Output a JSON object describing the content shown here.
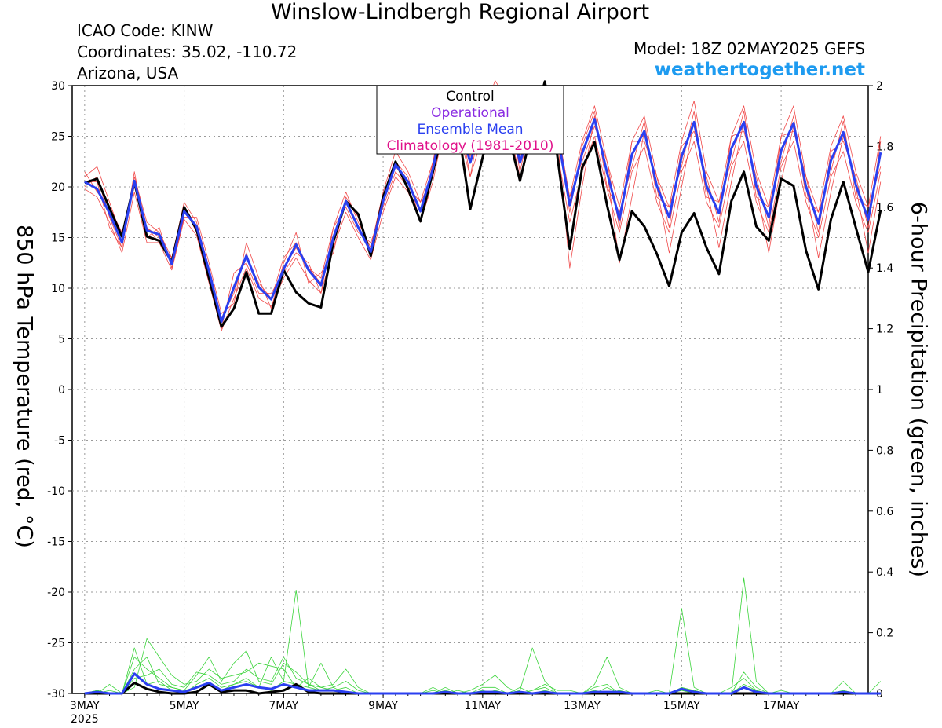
{
  "title": "Winslow-Lindbergh Regional Airport",
  "info": {
    "icao": "ICAO Code: KINW",
    "coordinates": "Coordinates: 35.02, -110.72",
    "location": "Arizona, USA",
    "model": "Model: 18Z 02MAY2025 GEFS",
    "site": "weathertogether.net"
  },
  "legend": {
    "entries": [
      {
        "label": "Control",
        "color": "#000000"
      },
      {
        "label": "Operational",
        "color": "#8a2be2"
      },
      {
        "label": "Ensemble Mean",
        "color": "#2a3ff0"
      },
      {
        "label": "Climatology (1981-2010)",
        "color": "#e0108a"
      }
    ]
  },
  "chart_data": {
    "type": "line",
    "grid": true,
    "y_left": {
      "label": "850 hPa Temperature (red, °C)",
      "range": [
        -30,
        30
      ],
      "ticks": [
        "30",
        "25",
        "20",
        "15",
        "10",
        "5",
        "0",
        "-5",
        "-10",
        "-15",
        "-20",
        "-25",
        "-30"
      ]
    },
    "y_right": {
      "label": "6-hour Precipitation (green, inches)",
      "range": [
        0,
        2
      ],
      "ticks": [
        "2",
        "1.8",
        "1.6",
        "1.4",
        "1.2",
        "1",
        "0.8",
        "0.6",
        "0.4",
        "0.2",
        "0"
      ]
    },
    "x_axis": {
      "start": "3MAY 18Z",
      "step_hours": 6,
      "range_steps": [
        -1,
        63
      ],
      "tick_labels": [
        {
          "label": "3MAY",
          "sub": "2025",
          "step": 0
        },
        {
          "label": "5MAY",
          "step": 8
        },
        {
          "label": "7MAY",
          "step": 16
        },
        {
          "label": "9MAY",
          "step": 24
        },
        {
          "label": "11MAY",
          "step": 32
        },
        {
          "label": "13MAY",
          "step": 40
        },
        {
          "label": "15MAY",
          "step": 48
        },
        {
          "label": "17MAY",
          "step": 56
        }
      ]
    },
    "temperature": {
      "control": {
        "color": "#000000",
        "values": [
          20.4,
          20.8,
          17.9,
          15.1,
          20.5,
          15.1,
          14.7,
          12.6,
          18.0,
          15.8,
          11.0,
          6.2,
          8.0,
          11.6,
          7.5,
          7.5,
          11.8,
          9.6,
          8.5,
          8.1,
          14.6,
          18.6,
          17.3,
          13.2,
          19.0,
          22.5,
          19.8,
          16.6,
          21.5,
          26.5,
          26.1,
          17.8,
          22.9,
          27.7,
          25.5,
          20.6,
          25.8,
          30.4,
          23.1,
          13.9,
          21.9,
          24.4,
          18.2,
          12.8,
          17.6,
          16.1,
          13.4,
          10.2,
          15.5,
          17.4,
          14.0,
          11.4,
          18.6,
          21.5,
          16.1,
          14.7,
          20.8,
          20.1,
          13.7,
          9.9,
          16.8,
          20.5,
          16.0,
          11.6,
          17.7
        ]
      },
      "mean": {
        "color": "#2a3ff0",
        "values": [
          20.5,
          19.8,
          17.4,
          14.5,
          20.6,
          15.7,
          15.3,
          12.4,
          17.6,
          16.1,
          11.7,
          6.7,
          10.1,
          13.2,
          10.1,
          8.9,
          11.9,
          14.3,
          11.8,
          10.3,
          15.0,
          18.6,
          16.0,
          13.6,
          18.6,
          22.2,
          20.5,
          17.6,
          21.8,
          27.7,
          27.0,
          22.4,
          26.5,
          29.8,
          27.9,
          22.4,
          26.4,
          27.7,
          25.3,
          18.2,
          23.3,
          26.7,
          21.4,
          16.8,
          23.2,
          25.5,
          20.1,
          17.0,
          23.0,
          26.4,
          20.1,
          17.4,
          23.8,
          26.4,
          20.1,
          17.0,
          23.6,
          26.3,
          20.0,
          16.4,
          22.6,
          25.4,
          20.2,
          16.8,
          23.4
        ]
      },
      "members": [
        {
          "color": "#f04848",
          "values": [
            21.0,
            22.0,
            18.5,
            15.0,
            21.0,
            16.5,
            15.5,
            13.0,
            18.5,
            16.5,
            12.0,
            7.0,
            9.5,
            13.5,
            10.0,
            9.0,
            13.0,
            14.5,
            12.0,
            11.0,
            16.0,
            19.5,
            16.5,
            14.0,
            19.5,
            23.5,
            21.5,
            18.5,
            22.5,
            28.5,
            28.0,
            23.0,
            27.0,
            30.5,
            28.5,
            23.0,
            27.0,
            28.5,
            26.0,
            19.0,
            24.5,
            28.0,
            22.5,
            18.0,
            24.5,
            27.0,
            21.0,
            18.0,
            24.5,
            28.5,
            21.5,
            18.5,
            25.0,
            28.0,
            21.5,
            18.0,
            25.0,
            28.0,
            21.0,
            17.5,
            24.0,
            27.0,
            21.5,
            18.0,
            25.0
          ]
        },
        {
          "color": "#f04848",
          "values": [
            19.8,
            19.0,
            16.5,
            13.5,
            19.5,
            14.5,
            14.5,
            11.8,
            16.8,
            15.2,
            10.5,
            5.8,
            9.0,
            12.0,
            9.0,
            8.2,
            11.0,
            13.0,
            10.8,
            9.5,
            14.0,
            17.5,
            15.0,
            12.8,
            17.5,
            21.0,
            19.5,
            16.5,
            20.5,
            26.5,
            25.8,
            21.0,
            25.0,
            28.5,
            26.5,
            21.0,
            25.0,
            26.0,
            23.5,
            16.5,
            21.5,
            25.0,
            19.8,
            15.5,
            21.5,
            24.0,
            18.5,
            15.5,
            21.5,
            24.5,
            18.5,
            16.0,
            22.0,
            24.5,
            18.5,
            15.5,
            22.0,
            24.5,
            18.5,
            15.0,
            21.0,
            23.5,
            18.5,
            15.5,
            21.5
          ]
        },
        {
          "color": "#f04848",
          "values": [
            20.0,
            21.0,
            17.0,
            14.0,
            21.5,
            15.0,
            16.0,
            12.0,
            17.0,
            17.0,
            12.5,
            7.5,
            8.5,
            14.5,
            11.0,
            8.0,
            12.5,
            15.5,
            10.5,
            11.5,
            13.5,
            19.0,
            17.0,
            13.0,
            19.0,
            22.5,
            21.0,
            16.5,
            22.5,
            27.0,
            28.0,
            21.0,
            27.5,
            29.5,
            29.0,
            21.5,
            27.0,
            27.0,
            26.0,
            17.5,
            24.0,
            27.5,
            20.0,
            17.5,
            22.0,
            26.5,
            19.0,
            18.0,
            22.0,
            27.5,
            19.0,
            18.5,
            22.5,
            27.5,
            19.0,
            18.0,
            22.5,
            27.0,
            19.0,
            17.5,
            21.5,
            26.5,
            19.0,
            18.0,
            22.0
          ]
        },
        {
          "color": "#f04848",
          "values": [
            21.5,
            19.5,
            18.0,
            15.5,
            20.0,
            16.0,
            14.5,
            13.0,
            18.0,
            15.5,
            11.0,
            6.0,
            11.5,
            12.5,
            9.5,
            9.5,
            11.5,
            13.5,
            12.5,
            9.5,
            16.0,
            18.0,
            15.5,
            14.5,
            18.0,
            21.5,
            20.0,
            18.5,
            21.0,
            28.0,
            26.0,
            23.5,
            25.5,
            30.0,
            27.0,
            23.5,
            25.5,
            28.5,
            24.5,
            19.0,
            22.5,
            26.0,
            22.5,
            16.0,
            24.5,
            24.5,
            21.0,
            16.0,
            24.0,
            25.5,
            21.0,
            16.5,
            25.0,
            25.5,
            21.0,
            16.0,
            25.0,
            25.5,
            21.0,
            15.5,
            23.5,
            24.5,
            21.0,
            16.0,
            24.5
          ]
        },
        {
          "color": "#f04848",
          "values": [
            20.5,
            20.5,
            16.0,
            14.0,
            20.5,
            16.0,
            15.0,
            12.5,
            17.5,
            16.0,
            11.5,
            7.0,
            10.0,
            13.0,
            10.5,
            9.0,
            12.0,
            14.0,
            12.0,
            10.5,
            15.0,
            18.5,
            16.0,
            13.5,
            18.5,
            22.0,
            20.5,
            17.5,
            22.0,
            27.5,
            27.0,
            22.5,
            26.5,
            29.5,
            28.0,
            22.5,
            26.5,
            27.5,
            25.0,
            12.0,
            20.0,
            27.0,
            21.5,
            12.5,
            19.0,
            25.5,
            20.0,
            13.5,
            20.0,
            26.5,
            20.0,
            14.0,
            20.5,
            26.5,
            20.0,
            13.5,
            20.5,
            26.0,
            20.0,
            13.0,
            19.5,
            25.0,
            20.0,
            13.5,
            20.5
          ]
        }
      ]
    },
    "precipitation": {
      "control": {
        "color": "#000000",
        "values": [
          0,
          0,
          0,
          0,
          0.035,
          0.015,
          0.005,
          0,
          0,
          0.005,
          0.03,
          0.005,
          0.01,
          0.01,
          0,
          0.005,
          0.01,
          0.03,
          0.005,
          0,
          0,
          0,
          0,
          0,
          0,
          0,
          0,
          0,
          0,
          0,
          0,
          0,
          0,
          0,
          0,
          0,
          0,
          0,
          0,
          0,
          0,
          0,
          0,
          0,
          0,
          0,
          0,
          0,
          0,
          0,
          0,
          0,
          0,
          0,
          0,
          0,
          0,
          0,
          0,
          0,
          0,
          0,
          0,
          0,
          0
        ]
      },
      "mean": {
        "color": "#2a3ff0",
        "values": [
          0,
          0.005,
          0,
          0,
          0.065,
          0.03,
          0.015,
          0.01,
          0.005,
          0.02,
          0.035,
          0.01,
          0.02,
          0.03,
          0.02,
          0.015,
          0.03,
          0.02,
          0.01,
          0.01,
          0.01,
          0.005,
          0,
          0,
          0,
          0,
          0,
          0,
          0,
          0.005,
          0,
          0,
          0.005,
          0.005,
          0,
          0.005,
          0,
          0.005,
          0,
          0,
          0,
          0.005,
          0.005,
          0.005,
          0,
          0,
          0,
          0,
          0.015,
          0.005,
          0,
          0,
          0,
          0.02,
          0.005,
          0,
          0,
          0,
          0,
          0,
          0,
          0.005,
          0,
          0,
          0
        ]
      },
      "members": [
        {
          "color": "#3ad43a",
          "values": [
            0,
            0,
            0.03,
            0,
            0.02,
            0.18,
            0.12,
            0.06,
            0.03,
            0.04,
            0.08,
            0.05,
            0.06,
            0.07,
            0.1,
            0.09,
            0.08,
            0.02,
            0.05,
            0.02,
            0.03,
            0.08,
            0.02,
            0,
            0,
            0,
            0,
            0,
            0,
            0.02,
            0,
            0.01,
            0.03,
            0.06,
            0.02,
            0,
            0.01,
            0.03,
            0.01,
            0.01,
            0,
            0.02,
            0.03,
            0,
            0,
            0,
            0.01,
            0,
            0.28,
            0.02,
            0,
            0,
            0.02,
            0.05,
            0.01,
            0,
            0.01,
            0,
            0,
            0,
            0,
            0,
            0,
            0,
            0
          ]
        },
        {
          "color": "#3ad43a",
          "values": [
            0,
            0.01,
            0,
            0,
            0.12,
            0.08,
            0.05,
            0.02,
            0.01,
            0.06,
            0.12,
            0.04,
            0.1,
            0.14,
            0.04,
            0.03,
            0.1,
            0.07,
            0.03,
            0.01,
            0.01,
            0,
            0,
            0,
            0,
            0,
            0,
            0,
            0.02,
            0,
            0,
            0,
            0.02,
            0.02,
            0,
            0.01,
            0.15,
            0.04,
            0,
            0,
            0,
            0.03,
            0.12,
            0.02,
            0,
            0,
            0,
            0,
            0.02,
            0.01,
            0,
            0,
            0,
            0.07,
            0.02,
            0,
            0,
            0,
            0,
            0,
            0,
            0.01,
            0,
            0,
            0
          ]
        },
        {
          "color": "#3ad43a",
          "values": [
            0,
            0,
            0,
            0,
            0.08,
            0.12,
            0.03,
            0.02,
            0.01,
            0.02,
            0.03,
            0.01,
            0.03,
            0.05,
            0.02,
            0.01,
            0.04,
            0.34,
            0.02,
            0.01,
            0.02,
            0.04,
            0.01,
            0,
            0,
            0,
            0,
            0,
            0,
            0,
            0,
            0,
            0,
            0,
            0,
            0,
            0,
            0,
            0,
            0,
            0,
            0,
            0,
            0,
            0,
            0,
            0,
            0,
            0,
            0,
            0,
            0,
            0,
            0.38,
            0.04,
            0,
            0,
            0,
            0,
            0,
            0,
            0.04,
            0,
            0,
            0.04
          ]
        },
        {
          "color": "#3ad43a",
          "values": [
            0,
            0.01,
            0,
            0,
            0.15,
            0.03,
            0.04,
            0.01,
            0,
            0.03,
            0.05,
            0.02,
            0.03,
            0.04,
            0.02,
            0.12,
            0.04,
            0.03,
            0.02,
            0.1,
            0.02,
            0,
            0,
            0,
            0,
            0,
            0,
            0,
            0,
            0.01,
            0,
            0,
            0.01,
            0,
            0,
            0,
            0.01,
            0.02,
            0,
            0,
            0,
            0.01,
            0,
            0.01,
            0,
            0,
            0,
            0,
            0.01,
            0.01,
            0,
            0,
            0,
            0.02,
            0.01,
            0,
            0,
            0,
            0,
            0,
            0,
            0.01,
            0,
            0,
            0
          ]
        },
        {
          "color": "#3ad43a",
          "values": [
            0,
            0,
            0.01,
            0,
            0.05,
            0.06,
            0.08,
            0.03,
            0.02,
            0.07,
            0.06,
            0.03,
            0.04,
            0.08,
            0.05,
            0.04,
            0.12,
            0.05,
            0.03,
            0.02,
            0.01,
            0.02,
            0,
            0,
            0,
            0,
            0,
            0,
            0.01,
            0,
            0.01,
            0,
            0,
            0.01,
            0,
            0.02,
            0,
            0.01,
            0,
            0,
            0,
            0,
            0.02,
            0,
            0,
            0,
            0,
            0,
            0.01,
            0,
            0,
            0,
            0,
            0.03,
            0.01,
            0,
            0,
            0,
            0,
            0,
            0,
            0,
            0,
            0,
            0
          ]
        }
      ]
    }
  }
}
